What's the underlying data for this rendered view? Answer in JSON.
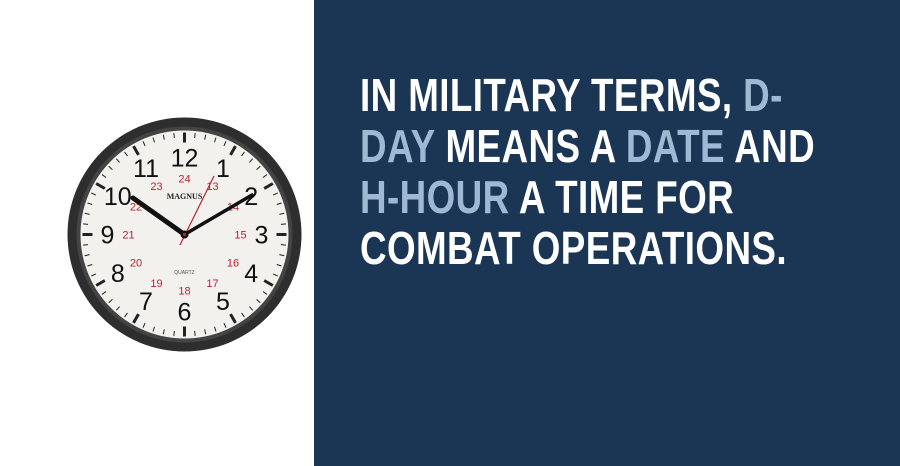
{
  "clock": {
    "brand": "MAGNUS",
    "movement": "QUARTZ",
    "hours": [
      "12",
      "1",
      "2",
      "3",
      "4",
      "5",
      "6",
      "7",
      "8",
      "9",
      "10",
      "11"
    ],
    "hours24": [
      "24",
      "13",
      "14",
      "15",
      "16",
      "17",
      "18",
      "19",
      "20",
      "21",
      "22",
      "23"
    ],
    "hand_color": "#c0202a"
  },
  "fact": {
    "line1": {
      "a": "IN MILITARY TERMS, ",
      "b": "D-"
    },
    "line2": {
      "a": "DAY",
      "b": " MEANS A ",
      "c": "DATE",
      "d": " AND"
    },
    "line3": {
      "a": "H-HOUR",
      "b": " A TIME FOR"
    },
    "line4": {
      "a": "COMBAT OPERATIONS."
    }
  },
  "colors": {
    "panel": "#1b3654",
    "highlight": "#9fb8d4",
    "text": "#ffffff"
  }
}
